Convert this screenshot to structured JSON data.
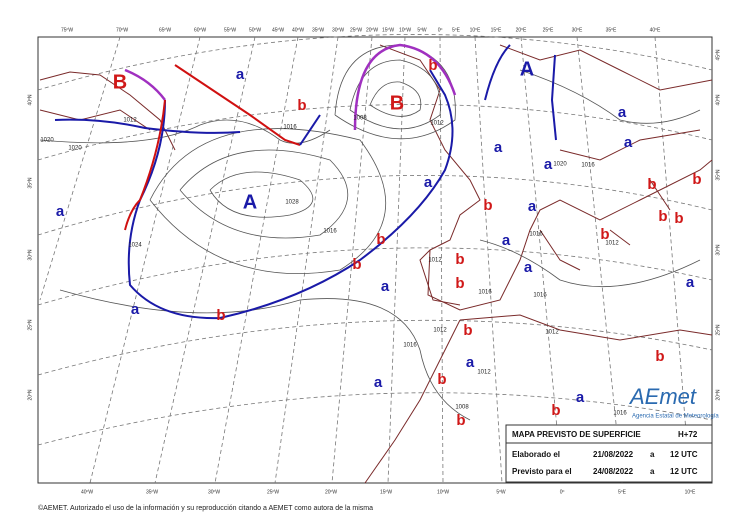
{
  "map": {
    "lon_top": [
      "75ºW",
      "70ºW",
      "65ºW",
      "60ºW",
      "55ºW",
      "50ºW",
      "45ºW",
      "40ºW",
      "35ºW",
      "30ºW",
      "25ºW",
      "20ºW",
      "15ºW",
      "10ºW",
      "5ºW",
      "0º",
      "5ºE",
      "10ºE",
      "15ºE",
      "20ºE",
      "25ºE",
      "30ºE",
      "35ºE",
      "40ºE"
    ],
    "lon_bottom": [
      "40ºW",
      "35ºW",
      "30ºW",
      "25ºW",
      "20ºW",
      "15ºW",
      "10ºW",
      "5ºW",
      "0º",
      "5ºE",
      "10ºE"
    ],
    "lat_left": [
      "40ºN",
      "35ºN",
      "30ºN",
      "25ºN",
      "20ºN"
    ],
    "lat_right": [
      "45ºN",
      "40ºN",
      "35ºN",
      "30ºN",
      "25ºN",
      "20ºN"
    ],
    "pressure_centers": [
      "B",
      "B",
      "A",
      "A",
      "a",
      "a",
      "a",
      "a",
      "a",
      "a",
      "a",
      "a",
      "a",
      "a",
      "a",
      "a",
      "a",
      "a",
      "a",
      "a",
      "b",
      "b",
      "b",
      "b",
      "b",
      "b",
      "b",
      "b",
      "b",
      "b",
      "b",
      "b",
      "b",
      "b",
      "b",
      "b",
      "b",
      "b"
    ],
    "isobar_labels": [
      "1012",
      "1016",
      "1020",
      "1020",
      "1024",
      "1028",
      "1016",
      "1012",
      "1008",
      "1012",
      "1016",
      "1020",
      "1016",
      "1016",
      "1012",
      "1016",
      "1012",
      "1016",
      "1012",
      "1008",
      "1012",
      "1016"
    ]
  },
  "legend": {
    "title": "MAPA PREVISTO DE SUPERFICIE",
    "range": "H+72",
    "rows": [
      [
        "Elaborado el",
        "21/08/2022",
        "a",
        "12 UTC"
      ],
      [
        "Previsto para el",
        "24/08/2022",
        "a",
        "12 UTC"
      ]
    ]
  },
  "logo": {
    "name": "AEmet",
    "agency": "Agencia Estatal de Meteorología"
  },
  "footer": "©AEMET. Autorizado el uso de la información y su reproducción citando a AEMET como autora de la misma"
}
